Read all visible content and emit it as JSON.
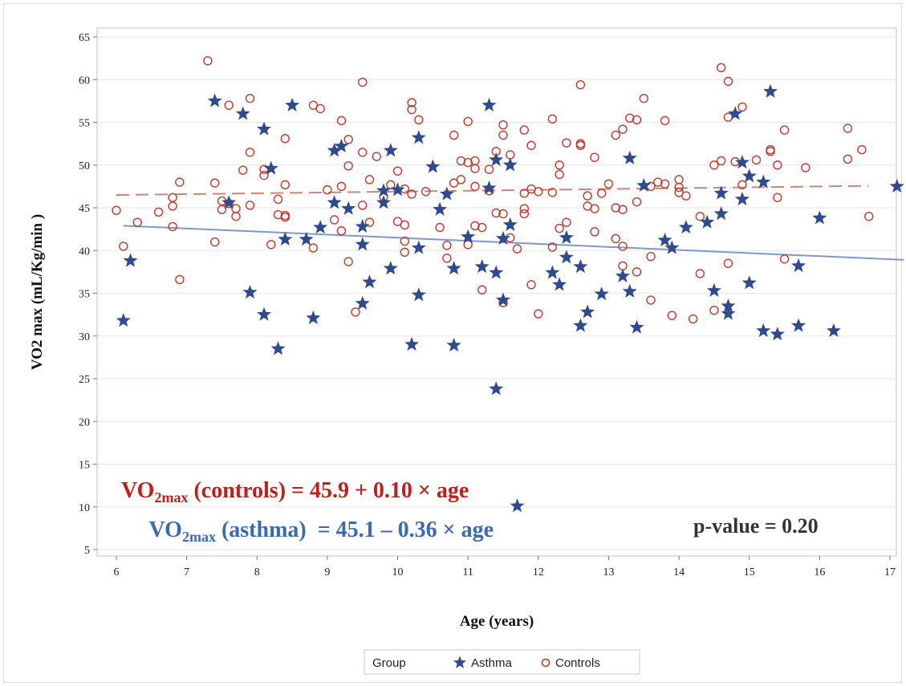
{
  "chart_data": {
    "type": "scatter",
    "xlabel": "Age (years)",
    "ylabel": "VO2 max (mL/Kg/min )",
    "xlim": [
      6,
      17
    ],
    "ylim": [
      5,
      65
    ],
    "xticks": [
      6,
      7,
      8,
      9,
      10,
      11,
      12,
      13,
      14,
      15,
      16,
      17
    ],
    "yticks": [
      5,
      10,
      15,
      20,
      25,
      30,
      35,
      40,
      45,
      50,
      55,
      60,
      65
    ],
    "grid": "horizontal",
    "legend": {
      "title": "Group",
      "placement": "bottom",
      "entries": [
        "Asthma",
        "Controls"
      ]
    },
    "colors": {
      "asthma": "#2f4a8f",
      "controls": "#c0392b",
      "asthma_line": "#7f97c9",
      "controls_line": "#c98676",
      "eq_controls": "#c0201a",
      "eq_asthma": "#3a6bb0"
    },
    "series": [
      {
        "name": "Asthma",
        "marker": "star",
        "points": [
          [
            6.1,
            31.8
          ],
          [
            6.2,
            38.8
          ],
          [
            7.4,
            57.5
          ],
          [
            7.6,
            45.6
          ],
          [
            7.8,
            56.0
          ],
          [
            7.9,
            35.1
          ],
          [
            8.1,
            54.2
          ],
          [
            8.1,
            32.5
          ],
          [
            8.2,
            49.6
          ],
          [
            8.3,
            28.5
          ],
          [
            8.4,
            41.3
          ],
          [
            8.5,
            57.0
          ],
          [
            8.7,
            41.3
          ],
          [
            8.8,
            32.1
          ],
          [
            8.9,
            42.7
          ],
          [
            9.1,
            51.7
          ],
          [
            9.1,
            45.6
          ],
          [
            9.2,
            52.2
          ],
          [
            9.3,
            44.9
          ],
          [
            9.5,
            40.7
          ],
          [
            9.5,
            42.8
          ],
          [
            9.5,
            33.8
          ],
          [
            9.6,
            36.3
          ],
          [
            9.8,
            47.0
          ],
          [
            9.8,
            45.6
          ],
          [
            9.9,
            51.7
          ],
          [
            9.9,
            37.9
          ],
          [
            10.0,
            47.1
          ],
          [
            10.2,
            29.0
          ],
          [
            10.3,
            53.2
          ],
          [
            10.3,
            40.3
          ],
          [
            10.3,
            34.8
          ],
          [
            10.5,
            49.8
          ],
          [
            10.6,
            44.8
          ],
          [
            10.7,
            46.6
          ],
          [
            10.8,
            37.9
          ],
          [
            10.8,
            28.9
          ],
          [
            11.0,
            41.6
          ],
          [
            11.2,
            38.1
          ],
          [
            11.3,
            57.0
          ],
          [
            11.3,
            47.3
          ],
          [
            11.4,
            50.6
          ],
          [
            11.4,
            37.4
          ],
          [
            11.4,
            23.8
          ],
          [
            11.5,
            41.4
          ],
          [
            11.5,
            34.2
          ],
          [
            11.6,
            50.0
          ],
          [
            11.6,
            43.0
          ],
          [
            11.7,
            10.1
          ],
          [
            12.2,
            37.4
          ],
          [
            12.3,
            36.0
          ],
          [
            12.4,
            41.5
          ],
          [
            12.4,
            39.2
          ],
          [
            12.6,
            38.1
          ],
          [
            12.6,
            31.2
          ],
          [
            12.7,
            32.8
          ],
          [
            12.9,
            34.9
          ],
          [
            13.2,
            37.0
          ],
          [
            13.3,
            50.8
          ],
          [
            13.3,
            35.2
          ],
          [
            13.4,
            31.0
          ],
          [
            13.5,
            47.6
          ],
          [
            13.8,
            41.2
          ],
          [
            13.9,
            40.3
          ],
          [
            14.1,
            42.7
          ],
          [
            14.4,
            43.3
          ],
          [
            14.5,
            35.3
          ],
          [
            14.6,
            46.7
          ],
          [
            14.6,
            44.3
          ],
          [
            14.7,
            33.5
          ],
          [
            14.7,
            32.6
          ],
          [
            14.8,
            56.0
          ],
          [
            14.9,
            50.3
          ],
          [
            14.9,
            46.0
          ],
          [
            15.0,
            48.7
          ],
          [
            15.0,
            36.2
          ],
          [
            15.2,
            48.0
          ],
          [
            15.2,
            30.6
          ],
          [
            15.3,
            58.6
          ],
          [
            15.4,
            30.2
          ],
          [
            15.7,
            38.2
          ],
          [
            15.7,
            31.2
          ],
          [
            16.0,
            43.8
          ],
          [
            16.2,
            30.6
          ],
          [
            17.1,
            47.5
          ]
        ],
        "fit": {
          "intercept": 45.1,
          "slope": -0.36,
          "x_range": [
            6.1,
            17.2
          ]
        }
      },
      {
        "name": "Controls",
        "marker": "open-circle",
        "points": [
          [
            6.0,
            44.7
          ],
          [
            6.1,
            40.5
          ],
          [
            6.3,
            43.3
          ],
          [
            6.6,
            44.5
          ],
          [
            6.8,
            46.2
          ],
          [
            6.8,
            45.2
          ],
          [
            6.8,
            42.8
          ],
          [
            6.9,
            48.0
          ],
          [
            6.9,
            36.6
          ],
          [
            7.3,
            62.2
          ],
          [
            7.4,
            47.9
          ],
          [
            7.4,
            41.0
          ],
          [
            7.5,
            45.8
          ],
          [
            7.5,
            44.8
          ],
          [
            7.6,
            57.0
          ],
          [
            7.6,
            45.5
          ],
          [
            7.7,
            44.0
          ],
          [
            7.7,
            44.9
          ],
          [
            7.8,
            49.4
          ],
          [
            7.9,
            57.8
          ],
          [
            7.9,
            51.5
          ],
          [
            7.9,
            45.3
          ],
          [
            8.1,
            49.5
          ],
          [
            8.1,
            48.8
          ],
          [
            8.2,
            40.7
          ],
          [
            8.3,
            46.0
          ],
          [
            8.3,
            44.2
          ],
          [
            8.4,
            53.1
          ],
          [
            8.4,
            47.7
          ],
          [
            8.4,
            44.1
          ],
          [
            8.4,
            43.9
          ],
          [
            8.8,
            57.0
          ],
          [
            8.8,
            40.3
          ],
          [
            8.9,
            56.6
          ],
          [
            9.0,
            47.1
          ],
          [
            9.1,
            43.6
          ],
          [
            9.2,
            55.2
          ],
          [
            9.2,
            47.5
          ],
          [
            9.2,
            42.3
          ],
          [
            9.3,
            53.0
          ],
          [
            9.3,
            49.9
          ],
          [
            9.3,
            38.7
          ],
          [
            9.4,
            32.8
          ],
          [
            9.5,
            59.7
          ],
          [
            9.5,
            51.5
          ],
          [
            9.5,
            45.3
          ],
          [
            9.6,
            48.3
          ],
          [
            9.6,
            43.3
          ],
          [
            9.7,
            51.0
          ],
          [
            9.8,
            46.3
          ],
          [
            9.9,
            47.7
          ],
          [
            10.0,
            49.3
          ],
          [
            10.0,
            43.4
          ],
          [
            10.1,
            47.2
          ],
          [
            10.1,
            43.0
          ],
          [
            10.1,
            41.1
          ],
          [
            10.1,
            39.8
          ],
          [
            10.2,
            57.3
          ],
          [
            10.2,
            56.5
          ],
          [
            10.2,
            46.6
          ],
          [
            10.3,
            55.3
          ],
          [
            10.4,
            46.9
          ],
          [
            10.6,
            42.7
          ],
          [
            10.7,
            40.6
          ],
          [
            10.7,
            39.1
          ],
          [
            10.8,
            53.5
          ],
          [
            10.8,
            47.9
          ],
          [
            10.9,
            50.5
          ],
          [
            10.9,
            48.3
          ],
          [
            11.0,
            55.1
          ],
          [
            11.0,
            50.3
          ],
          [
            11.0,
            40.7
          ],
          [
            11.1,
            50.5
          ],
          [
            11.1,
            49.6
          ],
          [
            11.1,
            47.5
          ],
          [
            11.1,
            42.9
          ],
          [
            11.2,
            42.7
          ],
          [
            11.2,
            35.4
          ],
          [
            11.3,
            49.5
          ],
          [
            11.3,
            47.0
          ],
          [
            11.4,
            51.6
          ],
          [
            11.4,
            44.4
          ],
          [
            11.5,
            54.7
          ],
          [
            11.5,
            53.5
          ],
          [
            11.5,
            44.3
          ],
          [
            11.5,
            33.9
          ],
          [
            11.6,
            51.2
          ],
          [
            11.6,
            41.5
          ],
          [
            11.7,
            40.2
          ],
          [
            11.8,
            54.1
          ],
          [
            11.8,
            46.7
          ],
          [
            11.8,
            44.9
          ],
          [
            11.8,
            44.3
          ],
          [
            11.9,
            52.3
          ],
          [
            11.9,
            47.2
          ],
          [
            11.9,
            36.0
          ],
          [
            12.0,
            46.9
          ],
          [
            12.0,
            32.6
          ],
          [
            12.2,
            55.4
          ],
          [
            12.2,
            46.8
          ],
          [
            12.2,
            40.4
          ],
          [
            12.3,
            50.0
          ],
          [
            12.3,
            48.9
          ],
          [
            12.3,
            42.6
          ],
          [
            12.4,
            52.6
          ],
          [
            12.4,
            43.3
          ],
          [
            12.6,
            59.4
          ],
          [
            12.6,
            52.5
          ],
          [
            12.6,
            52.3
          ],
          [
            12.7,
            46.4
          ],
          [
            12.7,
            45.2
          ],
          [
            12.8,
            50.9
          ],
          [
            12.8,
            44.9
          ],
          [
            12.8,
            42.2
          ],
          [
            12.9,
            46.7
          ],
          [
            13.0,
            47.8
          ],
          [
            13.1,
            53.5
          ],
          [
            13.1,
            45.0
          ],
          [
            13.1,
            41.4
          ],
          [
            13.2,
            54.2
          ],
          [
            13.2,
            44.8
          ],
          [
            13.2,
            40.5
          ],
          [
            13.2,
            38.2
          ],
          [
            13.3,
            55.5
          ],
          [
            13.4,
            55.3
          ],
          [
            13.4,
            45.7
          ],
          [
            13.4,
            37.5
          ],
          [
            13.5,
            57.8
          ],
          [
            13.6,
            47.5
          ],
          [
            13.6,
            39.3
          ],
          [
            13.6,
            34.2
          ],
          [
            13.7,
            48.0
          ],
          [
            13.8,
            55.2
          ],
          [
            13.8,
            47.8
          ],
          [
            13.9,
            32.4
          ],
          [
            14.0,
            48.3
          ],
          [
            14.0,
            47.4
          ],
          [
            14.0,
            46.8
          ],
          [
            14.1,
            46.4
          ],
          [
            14.2,
            32.0
          ],
          [
            14.3,
            44.0
          ],
          [
            14.3,
            37.3
          ],
          [
            14.5,
            50.0
          ],
          [
            14.5,
            33.0
          ],
          [
            14.6,
            61.4
          ],
          [
            14.6,
            50.5
          ],
          [
            14.7,
            59.8
          ],
          [
            14.7,
            55.6
          ],
          [
            14.7,
            38.5
          ],
          [
            14.8,
            50.4
          ],
          [
            14.9,
            56.8
          ],
          [
            14.9,
            47.7
          ],
          [
            15.1,
            50.6
          ],
          [
            15.3,
            51.8
          ],
          [
            15.3,
            51.6
          ],
          [
            15.4,
            50.0
          ],
          [
            15.4,
            46.2
          ],
          [
            15.5,
            54.1
          ],
          [
            15.5,
            39.0
          ],
          [
            15.8,
            49.7
          ],
          [
            16.4,
            54.3
          ],
          [
            16.4,
            50.7
          ],
          [
            16.6,
            51.8
          ],
          [
            16.7,
            44.0
          ]
        ],
        "fit": {
          "intercept": 45.9,
          "slope": 0.1,
          "x_range": [
            6.0,
            16.7
          ]
        }
      }
    ],
    "annotations": {
      "eq_controls": {
        "pre": "VO",
        "sub": "2max",
        "post": " (controls) = 45.9 + 0.10 × age"
      },
      "eq_asthma": {
        "pre": "VO",
        "sub": "2max",
        "post": " (asthma)  = 45.1 – 0.36 × age"
      },
      "pvalue": "p-value = 0.20"
    }
  }
}
